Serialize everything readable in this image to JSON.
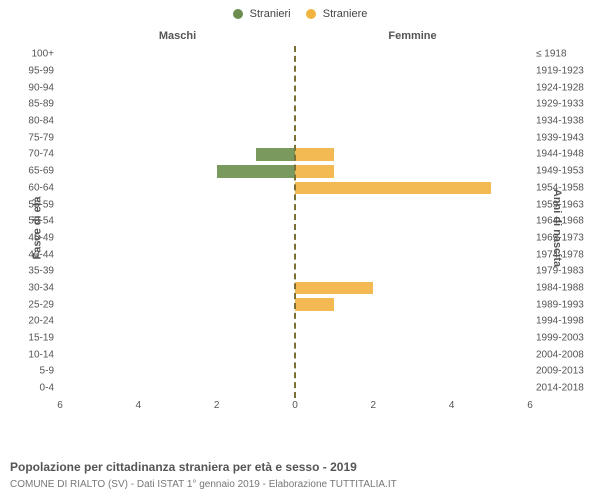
{
  "legend": {
    "items": [
      {
        "label": "Stranieri",
        "color": "#6b8e4e"
      },
      {
        "label": "Straniere",
        "color": "#f2b340"
      }
    ]
  },
  "headers": {
    "male": "Maschi",
    "female": "Femmine"
  },
  "axis_titles": {
    "left": "Fasce di età",
    "right": "Anni di nascita"
  },
  "chart": {
    "type": "population-pyramid",
    "xmax": 6,
    "xticks": [
      6,
      4,
      2,
      0,
      2,
      4,
      6
    ],
    "male_color": "#6b8e4e",
    "female_color": "#f2b340",
    "bar_opacity": 0.9,
    "background_color": "#ffffff",
    "center_line_color": "#7a7033",
    "rows": [
      {
        "age": "100+",
        "birth": "≤ 1918",
        "m": 0,
        "f": 0
      },
      {
        "age": "95-99",
        "birth": "1919-1923",
        "m": 0,
        "f": 0
      },
      {
        "age": "90-94",
        "birth": "1924-1928",
        "m": 0,
        "f": 0
      },
      {
        "age": "85-89",
        "birth": "1929-1933",
        "m": 0,
        "f": 0
      },
      {
        "age": "80-84",
        "birth": "1934-1938",
        "m": 0,
        "f": 0
      },
      {
        "age": "75-79",
        "birth": "1939-1943",
        "m": 0,
        "f": 0
      },
      {
        "age": "70-74",
        "birth": "1944-1948",
        "m": 1,
        "f": 1
      },
      {
        "age": "65-69",
        "birth": "1949-1953",
        "m": 2,
        "f": 1
      },
      {
        "age": "60-64",
        "birth": "1954-1958",
        "m": 0,
        "f": 5
      },
      {
        "age": "55-59",
        "birth": "1959-1963",
        "m": 0,
        "f": 0
      },
      {
        "age": "50-54",
        "birth": "1964-1968",
        "m": 0,
        "f": 0
      },
      {
        "age": "45-49",
        "birth": "1969-1973",
        "m": 0,
        "f": 0
      },
      {
        "age": "40-44",
        "birth": "1974-1978",
        "m": 0,
        "f": 0
      },
      {
        "age": "35-39",
        "birth": "1979-1983",
        "m": 0,
        "f": 0
      },
      {
        "age": "30-34",
        "birth": "1984-1988",
        "m": 0,
        "f": 2
      },
      {
        "age": "25-29",
        "birth": "1989-1993",
        "m": 0,
        "f": 1
      },
      {
        "age": "20-24",
        "birth": "1994-1998",
        "m": 0,
        "f": 0
      },
      {
        "age": "15-19",
        "birth": "1999-2003",
        "m": 0,
        "f": 0
      },
      {
        "age": "10-14",
        "birth": "2004-2008",
        "m": 0,
        "f": 0
      },
      {
        "age": "5-9",
        "birth": "2009-2013",
        "m": 0,
        "f": 0
      },
      {
        "age": "0-4",
        "birth": "2014-2018",
        "m": 0,
        "f": 0
      }
    ]
  },
  "caption": "Popolazione per cittadinanza straniera per età e sesso - 2019",
  "subcaption": "COMUNE DI RIALTO (SV) - Dati ISTAT 1° gennaio 2019 - Elaborazione TUTTITALIA.IT"
}
